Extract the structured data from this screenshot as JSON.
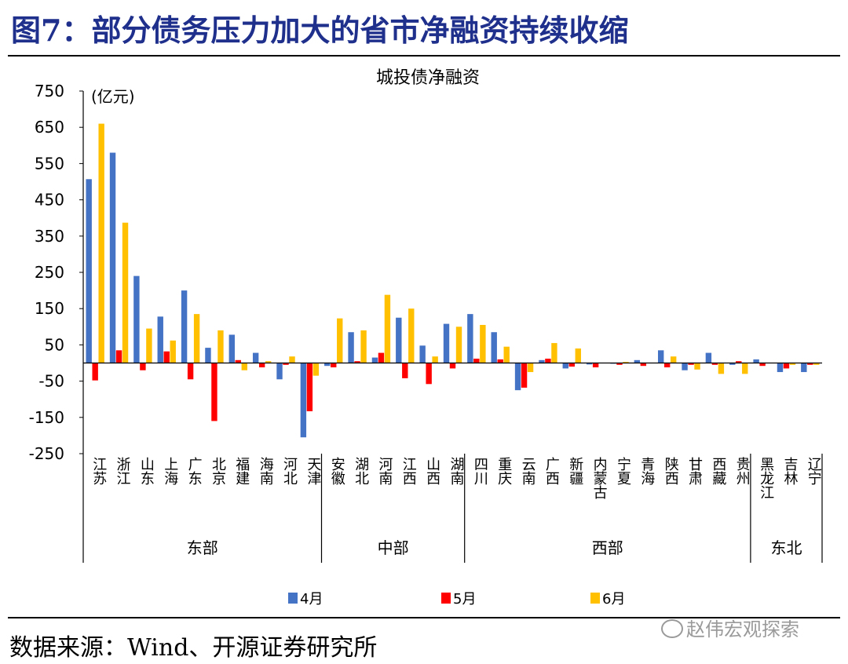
{
  "figure_title": "图7：部分债务压力加大的省市净融资持续收缩",
  "source_note": "数据来源：Wind、开源证券研究所",
  "watermark": "赵伟宏观探索",
  "colors": {
    "title": "#1f2f8c",
    "apr": "#4472c4",
    "may": "#ff0000",
    "jun": "#ffc000"
  },
  "chart_data": {
    "type": "bar",
    "title": "城投债净融资",
    "unit_label": "(亿元)",
    "ylim": [
      -250,
      750
    ],
    "yticks": [
      -250,
      -150,
      -50,
      50,
      150,
      250,
      350,
      450,
      550,
      650,
      750
    ],
    "legend_position": "bottom",
    "categories": [
      "江苏",
      "浙江",
      "山东",
      "上海",
      "广东",
      "北京",
      "福建",
      "海南",
      "河北",
      "天津",
      "安徽",
      "湖北",
      "河南",
      "江西",
      "山西",
      "湖南",
      "四川",
      "重庆",
      "云南",
      "广西",
      "新疆",
      "内蒙古",
      "宁夏",
      "青海",
      "陕西",
      "甘肃",
      "西藏",
      "贵州",
      "黑龙江",
      "吉林",
      "辽宁"
    ],
    "groups": [
      {
        "name": "东部",
        "count": 10
      },
      {
        "name": "中部",
        "count": 6
      },
      {
        "name": "西部",
        "count": 12
      },
      {
        "name": "东北",
        "count": 3
      }
    ],
    "series": [
      {
        "name": "4月",
        "values": [
          507,
          580,
          240,
          128,
          200,
          42,
          78,
          28,
          -45,
          -205,
          -8,
          85,
          15,
          125,
          48,
          108,
          135,
          85,
          -75,
          8,
          -15,
          -4,
          -2,
          8,
          35,
          -20,
          28,
          -5,
          10,
          -25,
          -25
        ]
      },
      {
        "name": "5月",
        "values": [
          -48,
          35,
          -20,
          32,
          -45,
          -160,
          8,
          -12,
          -5,
          -133,
          -12,
          5,
          28,
          -42,
          -58,
          -15,
          12,
          10,
          -68,
          12,
          -10,
          -12,
          -5,
          -8,
          -12,
          -5,
          -5,
          5,
          -8,
          -15,
          -5
        ]
      },
      {
        "name": "6月",
        "values": [
          660,
          387,
          95,
          62,
          135,
          90,
          -20,
          5,
          18,
          -35,
          123,
          90,
          188,
          150,
          18,
          100,
          105,
          45,
          -25,
          55,
          40,
          0,
          3,
          0,
          18,
          -18,
          -30,
          -30,
          0,
          -5,
          -5
        ]
      }
    ]
  }
}
